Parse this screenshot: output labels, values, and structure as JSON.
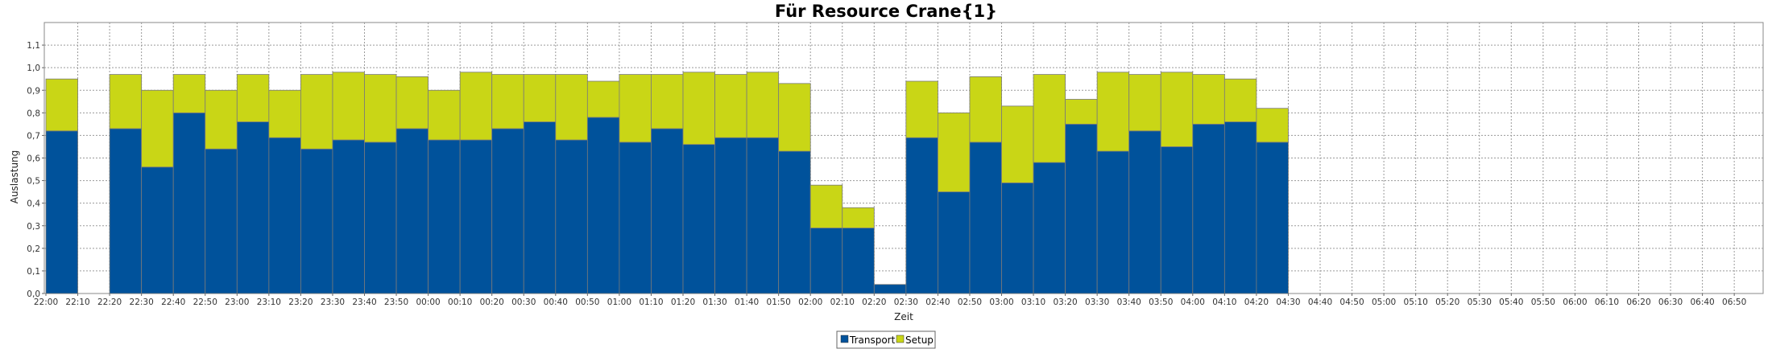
{
  "chart_data": {
    "type": "bar",
    "stacked": true,
    "title": "Für Resource Crane{1}",
    "xlabel": "Zeit",
    "ylabel": "Auslastung",
    "ylim": [
      0,
      1.2
    ],
    "yticks": [
      "0,0",
      "0,1",
      "0,2",
      "0,3",
      "0,4",
      "0,5",
      "0,6",
      "0,7",
      "0,8",
      "0,9",
      "1,0",
      "1,1"
    ],
    "grid": true,
    "legend_position": "bottom",
    "categories": [
      "22:00",
      "22:10",
      "22:20",
      "22:30",
      "22:40",
      "22:50",
      "23:00",
      "23:10",
      "23:20",
      "23:30",
      "23:40",
      "23:50",
      "00:00",
      "00:10",
      "00:20",
      "00:30",
      "00:40",
      "00:50",
      "01:00",
      "01:10",
      "01:20",
      "01:30",
      "01:40",
      "01:50",
      "02:00",
      "02:10",
      "02:20",
      "02:30",
      "02:40",
      "02:50",
      "03:00",
      "03:10",
      "03:20",
      "03:30",
      "03:40",
      "03:50",
      "04:00",
      "04:10",
      "04:20",
      "04:30",
      "04:40",
      "04:50",
      "05:00",
      "05:10",
      "05:20",
      "05:30",
      "05:40",
      "05:50",
      "06:00",
      "06:10",
      "06:20",
      "06:30",
      "06:40",
      "06:50"
    ],
    "series": [
      {
        "name": "Transport",
        "color": "#00529b",
        "values": [
          0.72,
          0,
          0.73,
          0.56,
          0.8,
          0.64,
          0.76,
          0.69,
          0.64,
          0.68,
          0.67,
          0.73,
          0.68,
          0.68,
          0.73,
          0.76,
          0.68,
          0.78,
          0.67,
          0.73,
          0.66,
          0.69,
          0.69,
          0.63,
          0.29,
          0.29,
          0.04,
          0.69,
          0.45,
          0.67,
          0.49,
          0.58,
          0.75,
          0.63,
          0.72,
          0.65,
          0.75,
          0.76,
          0.67,
          0,
          0,
          0,
          0,
          0,
          0,
          0,
          0,
          0,
          0,
          0,
          0,
          0,
          0,
          0
        ]
      },
      {
        "name": "Setup",
        "color": "#c9d616",
        "values": [
          0.23,
          0,
          0.24,
          0.34,
          0.17,
          0.26,
          0.21,
          0.21,
          0.33,
          0.3,
          0.3,
          0.23,
          0.22,
          0.3,
          0.24,
          0.21,
          0.29,
          0.16,
          0.3,
          0.24,
          0.32,
          0.28,
          0.29,
          0.3,
          0.19,
          0.09,
          0,
          0.25,
          0.35,
          0.29,
          0.34,
          0.39,
          0.11,
          0.35,
          0.25,
          0.33,
          0.22,
          0.19,
          0.15,
          0,
          0,
          0,
          0,
          0,
          0,
          0,
          0,
          0,
          0,
          0,
          0,
          0,
          0,
          0
        ]
      }
    ]
  }
}
